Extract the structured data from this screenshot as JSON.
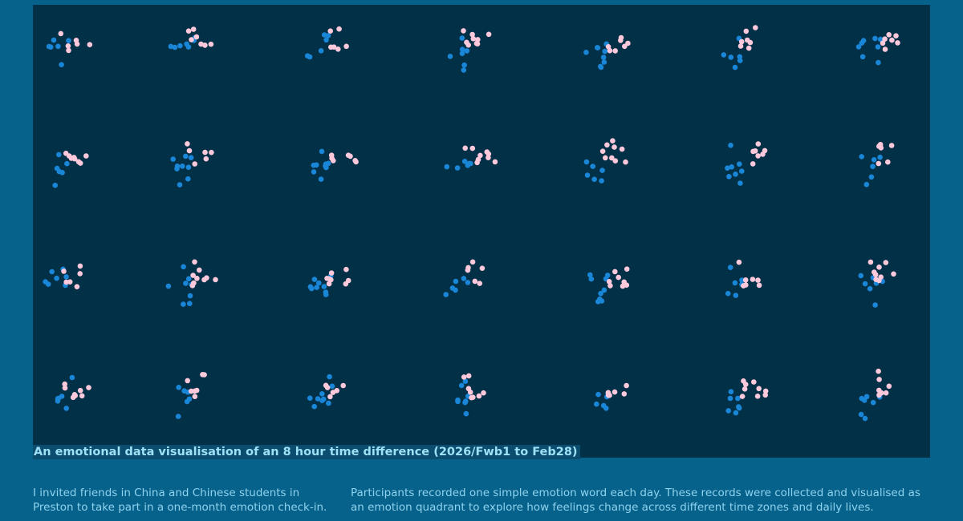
{
  "title": "An emotional data visualisation of an 8 hour time difference (2026/Fwb1 to Feb28)",
  "paragraphs": [
    "I invited friends in China and Chinese students in Preston to take part in a one-month emotion check-in.",
    "Participants recorded one simple emotion word each day. These records were collected and visualised as an emotion quadrant to explore how feelings change across different time zones and daily lives."
  ]
}
